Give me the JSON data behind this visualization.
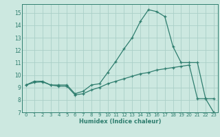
{
  "xlabel": "Humidex (Indice chaleur)",
  "series": [
    {
      "x": [
        0,
        1,
        2,
        3,
        4,
        5,
        6,
        7,
        8,
        9,
        10,
        11,
        12,
        13,
        14,
        15,
        16,
        17,
        18,
        19,
        20,
        21,
        22,
        23
      ],
      "y": [
        9.2,
        9.5,
        9.5,
        9.2,
        9.2,
        9.2,
        8.5,
        8.7,
        9.2,
        9.3,
        10.2,
        11.1,
        12.1,
        13.0,
        14.3,
        15.25,
        15.1,
        14.7,
        12.3,
        11.0,
        11.0,
        11.0,
        8.1,
        8.1
      ]
    },
    {
      "x": [
        0,
        1,
        2,
        3,
        4,
        5,
        6,
        7,
        8,
        9,
        10,
        11,
        12,
        13,
        14,
        15,
        16,
        17,
        18,
        19,
        20,
        21,
        22,
        23
      ],
      "y": [
        9.2,
        9.4,
        9.45,
        9.2,
        9.1,
        9.1,
        8.4,
        8.5,
        8.8,
        9.0,
        9.3,
        9.5,
        9.7,
        9.9,
        10.1,
        10.2,
        10.4,
        10.5,
        10.6,
        10.7,
        10.8,
        8.1,
        8.1,
        7.0
      ]
    }
  ],
  "line_color": "#2e7d6e",
  "bg_color": "#cce8e0",
  "grid_color": "#aacfc8",
  "ylim": [
    7,
    15.7
  ],
  "xlim": [
    -0.5,
    23.5
  ],
  "yticks": [
    7,
    8,
    9,
    10,
    11,
    12,
    13,
    14,
    15
  ],
  "xticks": [
    0,
    1,
    2,
    3,
    4,
    5,
    6,
    7,
    8,
    9,
    10,
    11,
    12,
    13,
    14,
    15,
    16,
    17,
    18,
    19,
    20,
    21,
    22,
    23
  ],
  "tick_fontsize": 5.0,
  "xlabel_fontsize": 6.0
}
